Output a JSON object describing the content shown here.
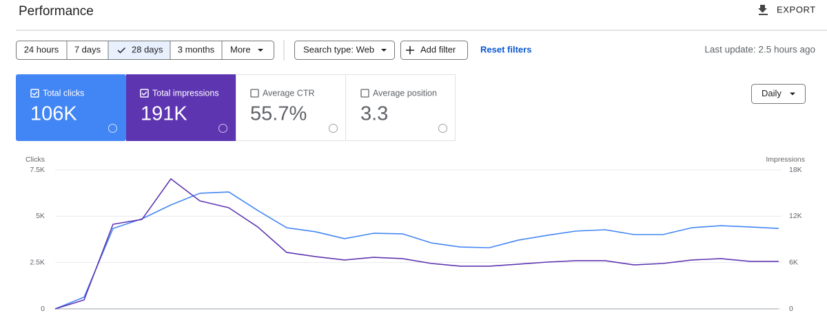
{
  "header": {
    "title": "Performance",
    "export": "EXPORT"
  },
  "filters": {
    "date_ranges": [
      "24 hours",
      "7 days",
      "28 days",
      "3 months"
    ],
    "more": "More",
    "search_type": "Search type: Web",
    "add_filter": "Add filter",
    "reset_filters": "Reset filters",
    "last_update": "Last update: 2.5 hours ago"
  },
  "metrics": [
    {
      "label": "Total clicks",
      "value": "106K"
    },
    {
      "label": "Total impressions",
      "value": "191K"
    },
    {
      "label": "Average CTR",
      "value": "55.7%"
    },
    {
      "label": "Average position",
      "value": "3.3"
    }
  ],
  "granularity": "Daily",
  "chart_data": {
    "type": "line",
    "y_label": "Clicks",
    "y2_label": "Impressions",
    "ylim": [
      0,
      7500
    ],
    "yticks": [
      0,
      {
        "value": 2500,
        "label": "2.5K"
      },
      {
        "value": 5000,
        "label": "5K"
      },
      {
        "value": 7500,
        "label": "7.5K"
      }
    ],
    "y2lim": [
      0,
      18000
    ],
    "y2ticks": [
      0,
      {
        "value": 6000,
        "label": "6K"
      },
      {
        "value": 12000,
        "label": "12K"
      },
      {
        "value": 18000,
        "label": "18K"
      }
    ],
    "grid": true,
    "series": [
      {
        "name": "Clicks",
        "color": "#4285f4",
        "values": [
          0,
          630,
          4340,
          4860,
          5610,
          6240,
          6310,
          5310,
          4380,
          4160,
          3790,
          4080,
          4050,
          3560,
          3340,
          3300,
          3710,
          3970,
          4200,
          4270,
          4010,
          4010,
          4380,
          4490,
          4420,
          4340
        ]
      },
      {
        "name": "Impressions",
        "color": "#5e35b1",
        "axis": "y2",
        "values": [
          0,
          1160,
          10960,
          11590,
          16840,
          13990,
          13100,
          10610,
          7310,
          6770,
          6330,
          6680,
          6510,
          5880,
          5530,
          5530,
          5790,
          6060,
          6240,
          6240,
          5700,
          5880,
          6330,
          6510,
          6150,
          6150
        ]
      }
    ]
  }
}
